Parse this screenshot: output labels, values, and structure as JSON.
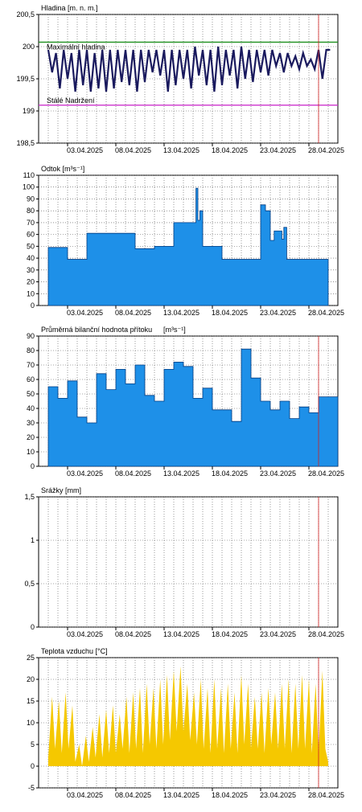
{
  "x_ticks": [
    "03.04.2025",
    "08.04.2025",
    "13.04.2025",
    "18.04.2025",
    "23.04.2025",
    "28.04.2025"
  ],
  "chart_data": [
    {
      "type": "line",
      "title": "Hladina [m. n. m.]",
      "ylim": [
        198.5,
        200.5
      ],
      "yticks": [
        "198,5",
        "199",
        "199,5",
        "200",
        "200,5"
      ],
      "ytick_values": [
        198.5,
        199.0,
        199.5,
        200.0,
        200.5
      ],
      "grid": true,
      "colors": {
        "series": "#1a1a5e",
        "max_level": "#1e8f1e",
        "permanent": "#cc33cc",
        "now": "#d02020"
      },
      "reference_lines": [
        {
          "name": "Maximální hladina",
          "value": 200.07
        },
        {
          "name": "Stálé Nadržení",
          "value": 199.09
        }
      ],
      "series": [
        {
          "x": [
            1,
            1.4,
            1.8,
            2.2,
            2.6,
            3,
            3.4,
            3.8,
            4.2,
            4.6,
            5,
            5.4,
            5.8,
            6.2,
            6.6,
            7,
            7.4,
            7.8,
            8.2,
            8.6,
            9,
            9.4,
            9.8,
            10.2,
            10.6,
            11,
            11.4,
            11.8,
            12.2,
            12.6,
            13,
            13.4,
            13.8,
            14.2,
            14.6,
            15,
            15.4,
            15.8,
            16.2,
            16.6,
            17,
            17.4,
            17.8,
            18.2,
            18.6,
            19,
            19.4,
            19.8,
            20.2,
            20.6,
            21,
            21.4,
            21.8,
            22.2,
            22.6,
            23,
            23.4,
            23.8,
            24.2,
            24.6,
            25,
            25.4,
            25.8,
            26.2,
            26.6,
            27,
            27.4,
            27.8,
            28.2,
            28.6,
            29,
            29.4,
            29.8,
            30.2
          ],
          "values": [
            199.95,
            199.6,
            199.9,
            199.35,
            199.95,
            199.5,
            199.9,
            199.3,
            199.95,
            199.4,
            199.95,
            199.3,
            199.9,
            199.35,
            199.95,
            199.3,
            199.95,
            199.35,
            199.95,
            199.45,
            199.95,
            199.4,
            199.95,
            199.3,
            199.95,
            199.45,
            199.95,
            199.6,
            199.95,
            199.55,
            199.95,
            199.3,
            199.95,
            199.4,
            199.95,
            199.5,
            199.95,
            199.35,
            200.0,
            199.55,
            199.95,
            199.4,
            199.95,
            199.3,
            200.0,
            199.4,
            199.95,
            199.55,
            199.95,
            199.35,
            200.0,
            199.5,
            199.95,
            199.45,
            199.95,
            199.6,
            199.95,
            199.55,
            199.95,
            199.7,
            199.9,
            199.6,
            199.9,
            199.7,
            199.85,
            199.65,
            199.9,
            199.7,
            199.8,
            199.65,
            199.95,
            199.5,
            199.95,
            199.95
          ]
        }
      ]
    },
    {
      "type": "area",
      "title": "Odtok [m³s⁻¹]",
      "ylim": [
        0,
        110
      ],
      "yticks": [
        "0",
        "10",
        "20",
        "30",
        "40",
        "50",
        "60",
        "70",
        "80",
        "90",
        "100",
        "110"
      ],
      "ytick_values": [
        0,
        10,
        20,
        30,
        40,
        50,
        60,
        70,
        80,
        90,
        100,
        110
      ],
      "grid": true,
      "colors": {
        "fill": "#1e90e8",
        "line": "#003a80"
      },
      "series": [
        {
          "x": [
            1,
            3,
            3,
            5,
            5,
            10,
            10,
            12,
            12,
            14,
            14,
            16.3,
            16.3,
            16.5,
            16.5,
            16.7,
            16.7,
            17,
            17,
            19,
            19,
            23,
            23,
            23.5,
            23.5,
            24,
            24,
            24.4,
            24.4,
            25.2,
            25.2,
            25.4,
            25.4,
            25.7,
            25.7,
            30
          ],
          "values": [
            49,
            49,
            39,
            39,
            61,
            61,
            48,
            48,
            50,
            50,
            70,
            70,
            99,
            99,
            72,
            72,
            80,
            80,
            50,
            50,
            39,
            39,
            85,
            85,
            80,
            80,
            55,
            55,
            63,
            63,
            56,
            56,
            66,
            66,
            39,
            39
          ]
        }
      ]
    },
    {
      "type": "area",
      "title": "Průměrná bilanční hodnota přítoku",
      "unit": "[m³s⁻¹]",
      "ylim": [
        0,
        90
      ],
      "yticks": [
        "0",
        "10",
        "20",
        "30",
        "40",
        "50",
        "60",
        "70",
        "80",
        "90"
      ],
      "ytick_values": [
        0,
        10,
        20,
        30,
        40,
        50,
        60,
        70,
        80,
        90
      ],
      "grid": true,
      "colors": {
        "fill": "#1e90e8",
        "line": "#003a80",
        "now": "#d02020"
      },
      "series": [
        {
          "x": [
            1,
            2,
            3,
            4,
            5,
            6,
            7,
            8,
            9,
            10,
            11,
            12,
            13,
            14,
            15,
            16,
            17,
            18,
            19,
            20,
            21,
            22,
            23,
            24,
            25,
            26,
            27,
            28,
            29,
            30
          ],
          "values": [
            55,
            47,
            59,
            34,
            30,
            64,
            53,
            67,
            57,
            70,
            49,
            45,
            67,
            72,
            69,
            47,
            54,
            39,
            39,
            31,
            81,
            61,
            45,
            39,
            45,
            33,
            41,
            37,
            48,
            48
          ]
        }
      ]
    },
    {
      "type": "bar",
      "title": "Srážky [mm]",
      "ylim": [
        0,
        1.5
      ],
      "yticks": [
        "0",
        "0,5",
        "1",
        "1,5"
      ],
      "ytick_values": [
        0,
        0.5,
        1.0,
        1.5
      ],
      "grid": true,
      "colors": {
        "now": "#d02020"
      },
      "series": [
        {
          "x": [],
          "values": []
        }
      ]
    },
    {
      "type": "area",
      "title": "Teplota vzduchu [°C]",
      "ylim": [
        -5,
        25
      ],
      "yticks": [
        "-5",
        "0",
        "5",
        "10",
        "15",
        "20",
        "25"
      ],
      "ytick_values": [
        -5,
        0,
        5,
        10,
        15,
        20,
        25
      ],
      "grid": true,
      "colors": {
        "fill": "#f5c800",
        "now": "#d02020"
      },
      "series": [
        {
          "x": [
            1,
            1.4,
            1.7,
            2.1,
            2.4,
            2.8,
            3.1,
            3.5,
            3.8,
            4.2,
            4.5,
            4.9,
            5.2,
            5.6,
            5.9,
            6.3,
            6.6,
            7,
            7.3,
            7.7,
            8,
            8.4,
            8.7,
            9.1,
            9.4,
            9.8,
            10.1,
            10.5,
            10.8,
            11.2,
            11.5,
            11.9,
            12.2,
            12.6,
            12.9,
            13.3,
            13.6,
            14,
            14.3,
            14.7,
            15,
            15.4,
            15.7,
            16.1,
            16.4,
            16.8,
            17.1,
            17.5,
            17.8,
            18.2,
            18.5,
            18.9,
            19.2,
            19.6,
            19.9,
            20.3,
            20.6,
            21,
            21.3,
            21.7,
            22,
            22.4,
            22.7,
            23.1,
            23.4,
            23.8,
            24.1,
            24.5,
            24.8,
            25.2,
            25.5,
            25.9,
            26.2,
            26.6,
            26.9,
            27.3,
            27.6,
            28,
            28.3,
            28.7,
            29,
            29.4,
            29.7,
            30
          ],
          "values": [
            2,
            16,
            4,
            15,
            3,
            17,
            4,
            14,
            1,
            5,
            0,
            7,
            1,
            9,
            2,
            12,
            2,
            13,
            3,
            14,
            3,
            12,
            4,
            16,
            3,
            17,
            4,
            18,
            3,
            19,
            5,
            18,
            4,
            20,
            5,
            21,
            6,
            22,
            8,
            23,
            8,
            19,
            6,
            17,
            5,
            20,
            4,
            18,
            3,
            20,
            4,
            18,
            3,
            19,
            4,
            17,
            3,
            21,
            5,
            19,
            4,
            16,
            4,
            17,
            3,
            18,
            5,
            17,
            4,
            19,
            4,
            20,
            3,
            19,
            4,
            21,
            4,
            20,
            3,
            19,
            3,
            22,
            4,
            1
          ]
        }
      ]
    }
  ]
}
